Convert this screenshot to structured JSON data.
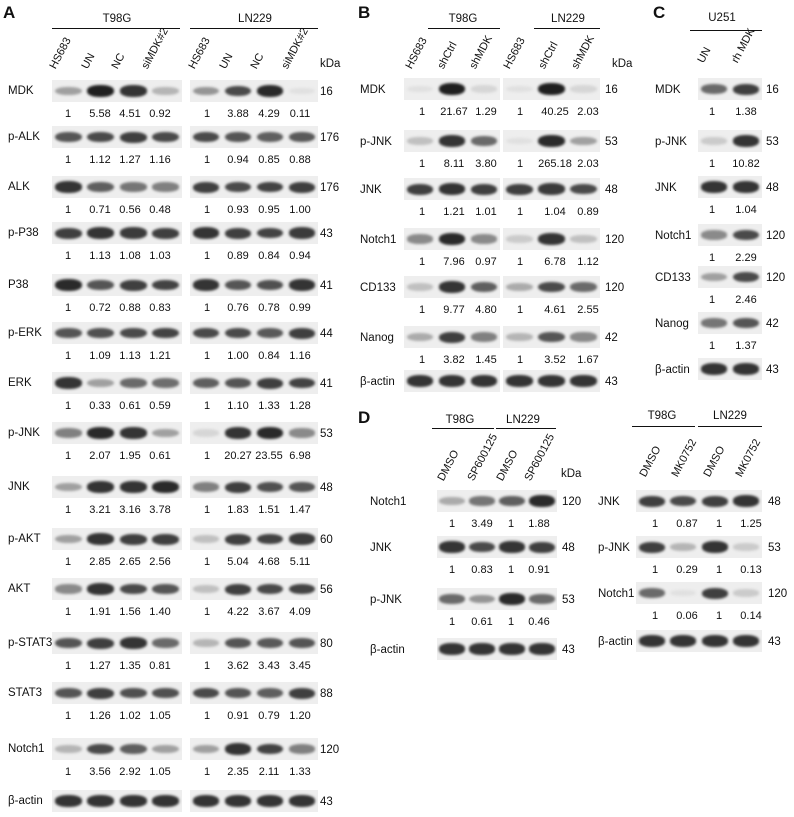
{
  "panels": {
    "A": {
      "letter": "A",
      "groups": [
        "T98G",
        "LN229"
      ],
      "lanes_left": [
        "HS683",
        "UN",
        "NC",
        "siMDK#2"
      ],
      "lanes_right": [
        "HS683",
        "UN",
        "NC",
        "siMDK#2"
      ],
      "kda_label": "kDa",
      "rows": [
        {
          "label": "MDK",
          "kda": "16",
          "left": [
            "1",
            "5.58",
            "4.51",
            "0.92"
          ],
          "right": [
            "1",
            "3.88",
            "4.29",
            "0.11"
          ],
          "bl": [
            0.35,
            0.95,
            0.85,
            0.25
          ],
          "br": [
            0.4,
            0.75,
            0.9,
            0.05
          ]
        },
        {
          "label": "p-ALK",
          "kda": "176",
          "left": [
            "1",
            "1.12",
            "1.27",
            "1.16"
          ],
          "right": [
            "1",
            "0.94",
            "0.85",
            "0.88"
          ],
          "bl": [
            0.7,
            0.75,
            0.8,
            0.75
          ],
          "br": [
            0.75,
            0.7,
            0.65,
            0.68
          ]
        },
        {
          "label": "ALK",
          "kda": "176",
          "left": [
            "1",
            "0.71",
            "0.56",
            "0.48"
          ],
          "right": [
            "1",
            "0.93",
            "0.95",
            "1.00"
          ],
          "bl": [
            0.85,
            0.65,
            0.55,
            0.5
          ],
          "br": [
            0.8,
            0.75,
            0.78,
            0.8
          ]
        },
        {
          "label": "p-P38",
          "kda": "43",
          "left": [
            "1",
            "1.13",
            "1.08",
            "1.03"
          ],
          "right": [
            "1",
            "0.89",
            "0.84",
            "0.94"
          ],
          "bl": [
            0.8,
            0.85,
            0.82,
            0.8
          ],
          "br": [
            0.85,
            0.8,
            0.78,
            0.82
          ]
        },
        {
          "label": "P38",
          "kda": "41",
          "left": [
            "1",
            "0.72",
            "0.88",
            "0.83"
          ],
          "right": [
            "1",
            "0.76",
            "0.78",
            "0.99"
          ],
          "bl": [
            0.9,
            0.7,
            0.8,
            0.78
          ],
          "br": [
            0.85,
            0.7,
            0.72,
            0.85
          ]
        },
        {
          "label": "p-ERK",
          "kda": "44",
          "left": [
            "1",
            "1.09",
            "1.13",
            "1.21"
          ],
          "right": [
            "1",
            "1.00",
            "0.84",
            "1.16"
          ],
          "bl": [
            0.7,
            0.72,
            0.75,
            0.78
          ],
          "br": [
            0.75,
            0.75,
            0.68,
            0.8
          ]
        },
        {
          "label": "ERK",
          "kda": "41",
          "left": [
            "1",
            "0.33",
            "0.61",
            "0.59"
          ],
          "right": [
            "1",
            "1.10",
            "1.33",
            "1.28"
          ],
          "bl": [
            0.85,
            0.35,
            0.6,
            0.58
          ],
          "br": [
            0.65,
            0.7,
            0.8,
            0.78
          ]
        },
        {
          "label": "p-JNK",
          "kda": "53",
          "left": [
            "1",
            "2.07",
            "1.95",
            "0.61"
          ],
          "right": [
            "1",
            "20.27",
            "23.55",
            "6.98"
          ],
          "bl": [
            0.5,
            0.9,
            0.85,
            0.35
          ],
          "br": [
            0.1,
            0.85,
            0.9,
            0.45
          ]
        },
        {
          "label": "JNK",
          "kda": "48",
          "left": [
            "1",
            "3.21",
            "3.16",
            "3.78"
          ],
          "right": [
            "1",
            "1.83",
            "1.51",
            "1.47"
          ],
          "bl": [
            0.35,
            0.85,
            0.85,
            0.9
          ],
          "br": [
            0.5,
            0.8,
            0.72,
            0.7
          ]
        },
        {
          "label": "p-AKT",
          "kda": "60",
          "left": [
            "1",
            "2.85",
            "2.65",
            "2.56"
          ],
          "right": [
            "1",
            "5.04",
            "4.68",
            "5.11"
          ],
          "bl": [
            0.35,
            0.85,
            0.8,
            0.8
          ],
          "br": [
            0.2,
            0.8,
            0.78,
            0.82
          ]
        },
        {
          "label": "AKT",
          "kda": "56",
          "left": [
            "1",
            "1.91",
            "1.56",
            "1.40"
          ],
          "right": [
            "1",
            "4.22",
            "3.67",
            "4.09"
          ],
          "bl": [
            0.45,
            0.85,
            0.75,
            0.7
          ],
          "br": [
            0.2,
            0.8,
            0.75,
            0.78
          ]
        },
        {
          "label": "p-STAT3",
          "kda": "80",
          "left": [
            "1",
            "1.27",
            "1.35",
            "0.81"
          ],
          "right": [
            "1",
            "3.62",
            "3.43",
            "3.45"
          ],
          "bl": [
            0.7,
            0.8,
            0.85,
            0.6
          ],
          "br": [
            0.25,
            0.7,
            0.68,
            0.7
          ]
        },
        {
          "label": "STAT3",
          "kda": "88",
          "left": [
            "1",
            "1.26",
            "1.02",
            "1.05"
          ],
          "right": [
            "1",
            "0.91",
            "0.79",
            "1.20"
          ],
          "bl": [
            0.7,
            0.8,
            0.72,
            0.72
          ],
          "br": [
            0.75,
            0.7,
            0.65,
            0.8
          ]
        },
        {
          "label": "Notch1",
          "kda": "120",
          "left": [
            "1",
            "3.56",
            "2.92",
            "1.05"
          ],
          "right": [
            "1",
            "2.35",
            "2.11",
            "1.33"
          ],
          "bl": [
            0.25,
            0.75,
            0.65,
            0.35
          ],
          "br": [
            0.35,
            0.85,
            0.78,
            0.5
          ]
        },
        {
          "label": "β-actin",
          "kda": "43",
          "left": [],
          "right": [],
          "bl": [
            0.85,
            0.85,
            0.85,
            0.85
          ],
          "br": [
            0.85,
            0.85,
            0.85,
            0.85
          ]
        }
      ]
    },
    "B": {
      "letter": "B",
      "groups": [
        "T98G",
        "LN229"
      ],
      "lanes_left": [
        "HS683",
        "shCtrl",
        "shMDK"
      ],
      "lanes_right": [
        "HS683",
        "shCtrl",
        "shMDK"
      ],
      "kda_label": "kDa",
      "rows": [
        {
          "label": "MDK",
          "kda": "16",
          "left": [
            "1",
            "21.67",
            "1.29"
          ],
          "right": [
            "1",
            "40.25",
            "2.03"
          ],
          "bl": [
            0.05,
            0.95,
            0.1
          ],
          "br": [
            0.05,
            0.95,
            0.1
          ]
        },
        {
          "label": "p-JNK",
          "kda": "53",
          "left": [
            "1",
            "8.11",
            "3.80"
          ],
          "right": [
            "1",
            "265.18",
            "2.03"
          ],
          "bl": [
            0.2,
            0.85,
            0.6
          ],
          "br": [
            0.05,
            0.9,
            0.35
          ]
        },
        {
          "label": "JNK",
          "kda": "48",
          "left": [
            "1",
            "1.21",
            "1.01"
          ],
          "right": [
            "1",
            "1.04",
            "0.89"
          ],
          "bl": [
            0.8,
            0.85,
            0.8
          ],
          "br": [
            0.8,
            0.82,
            0.75
          ]
        },
        {
          "label": "Notch1",
          "kda": "120",
          "left": [
            "1",
            "7.96",
            "0.97"
          ],
          "right": [
            "1",
            "6.78",
            "1.12"
          ],
          "bl": [
            0.45,
            0.9,
            0.45
          ],
          "br": [
            0.15,
            0.85,
            0.2
          ]
        },
        {
          "label": "CD133",
          "kda": "120",
          "left": [
            "1",
            "9.77",
            "4.80"
          ],
          "right": [
            "1",
            "4.61",
            "2.55"
          ],
          "bl": [
            0.2,
            0.85,
            0.65
          ],
          "br": [
            0.3,
            0.75,
            0.6
          ]
        },
        {
          "label": "Nanog",
          "kda": "42",
          "left": [
            "1",
            "3.82",
            "1.45"
          ],
          "right": [
            "1",
            "3.52",
            "1.67"
          ],
          "bl": [
            0.3,
            0.8,
            0.5
          ],
          "br": [
            0.25,
            0.7,
            0.45
          ]
        },
        {
          "label": "β-actin",
          "kda": "43",
          "left": [],
          "right": [],
          "bl": [
            0.85,
            0.85,
            0.85
          ],
          "br": [
            0.85,
            0.85,
            0.85
          ]
        }
      ]
    },
    "C": {
      "letter": "C",
      "group": "U251",
      "lanes": [
        "UN",
        "rh MDK"
      ],
      "rows": [
        {
          "label": "MDK",
          "kda": "16",
          "vals": [
            "1",
            "1.38"
          ],
          "b": [
            0.6,
            0.8
          ]
        },
        {
          "label": "p-JNK",
          "kda": "53",
          "vals": [
            "1",
            "10.82"
          ],
          "b": [
            0.15,
            0.85
          ]
        },
        {
          "label": "JNK",
          "kda": "48",
          "vals": [
            "1",
            "1.04"
          ],
          "b": [
            0.85,
            0.85
          ]
        },
        {
          "label": "Notch1",
          "kda": "120",
          "vals": [
            "1",
            "2.29"
          ],
          "b": [
            0.45,
            0.75
          ]
        },
        {
          "label": "CD133",
          "kda": "120",
          "vals": [
            "1",
            "2.46"
          ],
          "b": [
            0.35,
            0.75
          ]
        },
        {
          "label": "Nanog",
          "kda": "42",
          "vals": [
            "1",
            "1.37"
          ],
          "b": [
            0.55,
            0.7
          ]
        },
        {
          "label": "β-actin",
          "kda": "43",
          "vals": [],
          "b": [
            0.85,
            0.85
          ]
        }
      ]
    },
    "D": {
      "letter": "D",
      "left": {
        "groups": [
          "T98G",
          "LN229"
        ],
        "lanes": [
          "DMSO",
          "SP600125",
          "DMSO",
          "SP600125"
        ],
        "kda_label": "kDa",
        "rows": [
          {
            "label": "Notch1",
            "kda": "120",
            "vals": [
              "1",
              "3.49",
              "1",
              "1.88"
            ],
            "b": [
              0.3,
              0.55,
              0.65,
              0.9
            ]
          },
          {
            "label": "JNK",
            "kda": "48",
            "vals": [
              "1",
              "0.83",
              "1",
              "0.91"
            ],
            "b": [
              0.85,
              0.75,
              0.85,
              0.8
            ]
          },
          {
            "label": "p-JNK",
            "kda": "53",
            "vals": [
              "1",
              "0.61",
              "1",
              "0.46"
            ],
            "b": [
              0.6,
              0.4,
              0.9,
              0.6
            ]
          },
          {
            "label": "β-actin",
            "kda": "43",
            "vals": [],
            "b": [
              0.85,
              0.85,
              0.85,
              0.85
            ]
          }
        ]
      },
      "right": {
        "groups": [
          "T98G",
          "LN229"
        ],
        "lanes": [
          "DMSO",
          "MK0752",
          "DMSO",
          "MK0752"
        ],
        "rows": [
          {
            "label": "JNK",
            "kda": "48",
            "vals": [
              "1",
              "0.87",
              "1",
              "1.25"
            ],
            "b": [
              0.8,
              0.75,
              0.8,
              0.85
            ]
          },
          {
            "label": "p-JNK",
            "kda": "53",
            "vals": [
              "1",
              "0.29",
              "1",
              "0.13"
            ],
            "b": [
              0.8,
              0.25,
              0.85,
              0.15
            ]
          },
          {
            "label": "Notch1",
            "kda": "120",
            "vals": [
              "1",
              "0.06",
              "1",
              "0.14"
            ],
            "b": [
              0.6,
              0.05,
              0.8,
              0.15
            ]
          },
          {
            "label": "β-actin",
            "kda": "43",
            "vals": [],
            "b": [
              0.85,
              0.85,
              0.85,
              0.85
            ]
          }
        ]
      }
    }
  }
}
